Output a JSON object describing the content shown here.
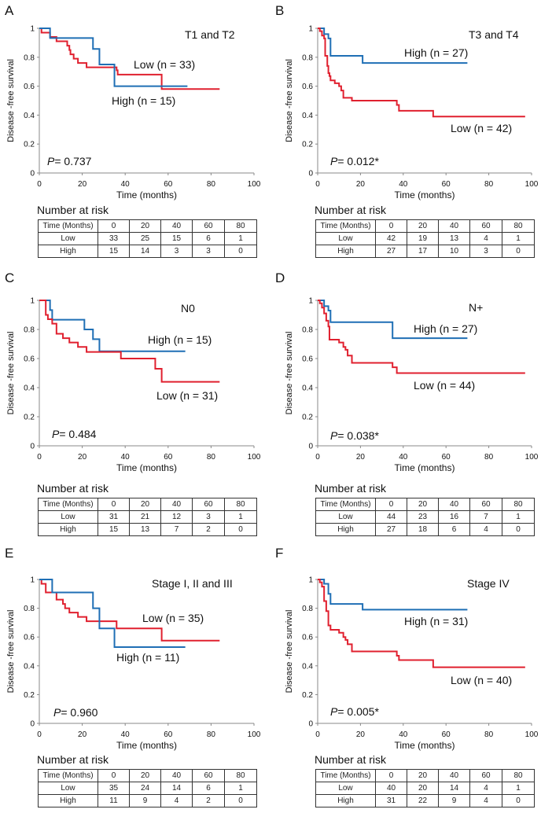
{
  "colors": {
    "high": "#1f6fb5",
    "low": "#e0202f",
    "axis": "#888888"
  },
  "chart_data": [
    {
      "type": "line",
      "panel": "A",
      "subtitle": "T1 and T2",
      "ylabel": "Disease -free survival",
      "xlabel": "Time (months)",
      "xlim": [
        0,
        100
      ],
      "ylim": [
        0,
        1
      ],
      "xticks": [
        "0",
        "20",
        "40",
        "60",
        "80",
        "100"
      ],
      "yticks": [
        "0",
        "0.2",
        "0.4",
        "0.6",
        "0.8",
        "1"
      ],
      "p_value": "P = 0.737",
      "p_prefix": "P",
      "p_text": "= 0.737",
      "series": [
        {
          "name": "Low (n = 33)",
          "group": "low",
          "steps": [
            [
              0,
              1
            ],
            [
              1,
              0.97
            ],
            [
              5,
              0.94
            ],
            [
              8,
              0.91
            ],
            [
              13,
              0.88
            ],
            [
              14,
              0.85
            ],
            [
              14.5,
              0.82
            ],
            [
              16,
              0.79
            ],
            [
              18,
              0.76
            ],
            [
              22,
              0.73
            ],
            [
              36,
              0.71
            ],
            [
              36.5,
              0.68
            ],
            [
              57,
              0.58
            ]
          ],
          "end": 84
        },
        {
          "name": "High (n = 15)",
          "group": "high",
          "steps": [
            [
              0,
              1
            ],
            [
              5,
              0.933
            ],
            [
              25,
              0.857
            ],
            [
              28,
              0.75
            ],
            [
              35,
              0.6
            ]
          ],
          "end": 69
        }
      ],
      "risk": {
        "title": "Number at risk",
        "header": [
          "Time (Months)",
          "0",
          "20",
          "40",
          "60",
          "80"
        ],
        "rows": [
          [
            "Low",
            "33",
            "25",
            "15",
            "6",
            "1"
          ],
          [
            "High",
            "15",
            "14",
            "3",
            "3",
            "0"
          ]
        ]
      }
    },
    {
      "type": "line",
      "panel": "B",
      "subtitle": "T3 and T4",
      "ylabel": "Disease -free survival",
      "xlabel": "Time (months)",
      "xlim": [
        0,
        100
      ],
      "ylim": [
        0,
        1
      ],
      "xticks": [
        "0",
        "20",
        "40",
        "60",
        "80",
        "100"
      ],
      "yticks": [
        "0",
        "0.2",
        "0.4",
        "0.6",
        "0.8",
        "1"
      ],
      "p_value": "P = 0.012*",
      "p_prefix": "P",
      "p_text": "= 0.012*",
      "series": [
        {
          "name": "High (n = 27)",
          "group": "high",
          "steps": [
            [
              0,
              1
            ],
            [
              3,
              0.96
            ],
            [
              5,
              0.93
            ],
            [
              6,
              0.81
            ],
            [
              21,
              0.76
            ]
          ],
          "end": 70
        },
        {
          "name": "Low (n = 42)",
          "group": "low",
          "steps": [
            [
              0,
              1
            ],
            [
              1,
              0.98
            ],
            [
              2,
              0.95
            ],
            [
              3,
              0.93
            ],
            [
              3.5,
              0.81
            ],
            [
              4.5,
              0.74
            ],
            [
              5,
              0.69
            ],
            [
              5.5,
              0.67
            ],
            [
              6,
              0.64
            ],
            [
              8,
              0.62
            ],
            [
              10,
              0.6
            ],
            [
              11,
              0.57
            ],
            [
              12,
              0.52
            ],
            [
              16,
              0.5
            ],
            [
              37,
              0.47
            ],
            [
              38,
              0.43
            ],
            [
              54,
              0.39
            ]
          ],
          "end": 97
        }
      ],
      "risk": {
        "title": "Number at risk",
        "header": [
          "Time (Months)",
          "0",
          "20",
          "40",
          "60",
          "80"
        ],
        "rows": [
          [
            "Low",
            "42",
            "19",
            "13",
            "4",
            "1"
          ],
          [
            "High",
            "27",
            "17",
            "10",
            "3",
            "0"
          ]
        ]
      }
    },
    {
      "type": "line",
      "panel": "C",
      "subtitle": "N0",
      "ylabel": "Disease -free survival",
      "xlabel": "Time (months)",
      "xlim": [
        0,
        100
      ],
      "ylim": [
        0,
        1
      ],
      "xticks": [
        "0",
        "20",
        "40",
        "60",
        "80",
        "100"
      ],
      "yticks": [
        "0",
        "0.2",
        "0.4",
        "0.6",
        "0.8",
        "1"
      ],
      "p_value": "P = 0.484",
      "p_prefix": "P",
      "p_text": "= 0.484",
      "series": [
        {
          "name": "High (n = 15)",
          "group": "high",
          "steps": [
            [
              0,
              1
            ],
            [
              5,
              0.933
            ],
            [
              6,
              0.867
            ],
            [
              21,
              0.8
            ],
            [
              25,
              0.733
            ],
            [
              28,
              0.65
            ]
          ],
          "end": 68
        },
        {
          "name": "Low (n = 31)",
          "group": "low",
          "steps": [
            [
              0,
              1
            ],
            [
              3,
              0.9
            ],
            [
              4,
              0.87
            ],
            [
              6,
              0.84
            ],
            [
              8,
              0.77
            ],
            [
              11,
              0.74
            ],
            [
              14,
              0.71
            ],
            [
              18,
              0.68
            ],
            [
              22,
              0.645
            ],
            [
              38,
              0.6
            ],
            [
              54,
              0.53
            ],
            [
              57,
              0.44
            ]
          ],
          "end": 84
        }
      ],
      "risk": {
        "title": "Number at risk",
        "header": [
          "Time (Months)",
          "0",
          "20",
          "40",
          "60",
          "80"
        ],
        "rows": [
          [
            "Low",
            "31",
            "21",
            "12",
            "3",
            "1"
          ],
          [
            "High",
            "15",
            "13",
            "7",
            "2",
            "0"
          ]
        ]
      }
    },
    {
      "type": "line",
      "panel": "D",
      "subtitle": "N+",
      "ylabel": "Disease -free survival",
      "xlabel": "Time (months)",
      "xlim": [
        0,
        100
      ],
      "ylim": [
        0,
        1
      ],
      "xticks": [
        "0",
        "20",
        "40",
        "60",
        "80",
        "100"
      ],
      "yticks": [
        "0",
        "0.2",
        "0.4",
        "0.6",
        "0.8",
        "1"
      ],
      "p_value": "P = 0.038*",
      "p_prefix": "P",
      "p_text": "= 0.038*",
      "series": [
        {
          "name": "High (n = 27)",
          "group": "high",
          "steps": [
            [
              0,
              1
            ],
            [
              3,
              0.96
            ],
            [
              5,
              0.93
            ],
            [
              6,
              0.85
            ],
            [
              35,
              0.74
            ]
          ],
          "end": 70
        },
        {
          "name": "Low (n = 44)",
          "group": "low",
          "steps": [
            [
              0,
              1
            ],
            [
              1,
              0.98
            ],
            [
              2,
              0.95
            ],
            [
              3,
              0.91
            ],
            [
              4,
              0.86
            ],
            [
              5,
              0.82
            ],
            [
              5.5,
              0.73
            ],
            [
              10,
              0.71
            ],
            [
              12,
              0.68
            ],
            [
              13,
              0.66
            ],
            [
              14,
              0.62
            ],
            [
              16,
              0.57
            ],
            [
              35,
              0.54
            ],
            [
              37,
              0.5
            ]
          ],
          "end": 97
        }
      ],
      "risk": {
        "title": "Number at risk",
        "header": [
          "Time (Months)",
          "0",
          "20",
          "40",
          "60",
          "80"
        ],
        "rows": [
          [
            "Low",
            "44",
            "23",
            "16",
            "7",
            "1"
          ],
          [
            "High",
            "27",
            "18",
            "6",
            "4",
            "0"
          ]
        ]
      }
    },
    {
      "type": "line",
      "panel": "E",
      "subtitle": "Stage I, II and III",
      "ylabel": "Disease -free survival",
      "xlabel": "Time (months)",
      "xlim": [
        0,
        100
      ],
      "ylim": [
        0,
        1
      ],
      "xticks": [
        "0",
        "20",
        "40",
        "60",
        "80",
        "100"
      ],
      "yticks": [
        "0",
        "0.2",
        "0.4",
        "0.6",
        "0.8",
        "1"
      ],
      "p_value": "P = 0.960",
      "p_prefix": "P",
      "p_text": "= 0.960",
      "series": [
        {
          "name": "Low (n = 35)",
          "group": "low",
          "steps": [
            [
              0,
              1
            ],
            [
              1,
              0.97
            ],
            [
              3,
              0.91
            ],
            [
              8,
              0.86
            ],
            [
              11,
              0.83
            ],
            [
              12,
              0.8
            ],
            [
              14,
              0.77
            ],
            [
              18,
              0.74
            ],
            [
              22,
              0.71
            ],
            [
              36,
              0.66
            ],
            [
              57,
              0.575
            ]
          ],
          "end": 84
        },
        {
          "name": "High (n = 11)",
          "group": "high",
          "steps": [
            [
              0,
              1
            ],
            [
              6,
              0.91
            ],
            [
              25,
              0.8
            ],
            [
              28,
              0.66
            ],
            [
              35,
              0.53
            ]
          ],
          "end": 68
        }
      ],
      "risk": {
        "title": "Number at risk",
        "header": [
          "Time (Months)",
          "0",
          "20",
          "40",
          "60",
          "80"
        ],
        "rows": [
          [
            "Low",
            "35",
            "24",
            "14",
            "6",
            "1"
          ],
          [
            "High",
            "11",
            "9",
            "4",
            "2",
            "0"
          ]
        ]
      }
    },
    {
      "type": "line",
      "panel": "F",
      "subtitle": "Stage IV",
      "ylabel": "Disease -free survival",
      "xlabel": "Time (months)",
      "xlim": [
        0,
        100
      ],
      "ylim": [
        0,
        1
      ],
      "xticks": [
        "0",
        "20",
        "40",
        "60",
        "80",
        "100"
      ],
      "yticks": [
        "0",
        "0.2",
        "0.4",
        "0.6",
        "0.8",
        "1"
      ],
      "p_value": "P = 0.005*",
      "p_prefix": "P",
      "p_text": "= 0.005*",
      "series": [
        {
          "name": "High (n = 31)",
          "group": "high",
          "steps": [
            [
              0,
              1
            ],
            [
              3,
              0.97
            ],
            [
              5,
              0.9
            ],
            [
              6,
              0.83
            ],
            [
              21,
              0.79
            ]
          ],
          "end": 70
        },
        {
          "name": "Low (n = 40)",
          "group": "low",
          "steps": [
            [
              0,
              1
            ],
            [
              1,
              0.98
            ],
            [
              2,
              0.95
            ],
            [
              3,
              0.85
            ],
            [
              4,
              0.78
            ],
            [
              5,
              0.68
            ],
            [
              6,
              0.65
            ],
            [
              10,
              0.63
            ],
            [
              12,
              0.6
            ],
            [
              13,
              0.58
            ],
            [
              14,
              0.55
            ],
            [
              16,
              0.5
            ],
            [
              37,
              0.47
            ],
            [
              38,
              0.44
            ],
            [
              54,
              0.39
            ]
          ],
          "end": 97
        }
      ],
      "risk": {
        "title": "Number at risk",
        "header": [
          "Time (Months)",
          "0",
          "20",
          "40",
          "60",
          "80"
        ],
        "rows": [
          [
            "Low",
            "40",
            "20",
            "14",
            "4",
            "1"
          ],
          [
            "High",
            "31",
            "22",
            "9",
            "4",
            "0"
          ]
        ]
      }
    }
  ]
}
